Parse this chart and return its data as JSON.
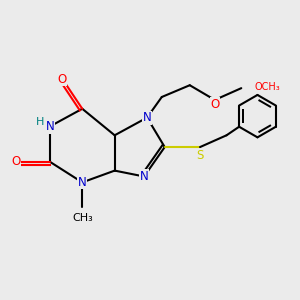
{
  "bg_color": "#ebebeb",
  "atom_colors": {
    "C": "#000000",
    "N": "#0000cc",
    "O": "#ff0000",
    "S": "#cccc00",
    "H": "#008080"
  },
  "bond_color": "#000000",
  "line_width": 1.5
}
